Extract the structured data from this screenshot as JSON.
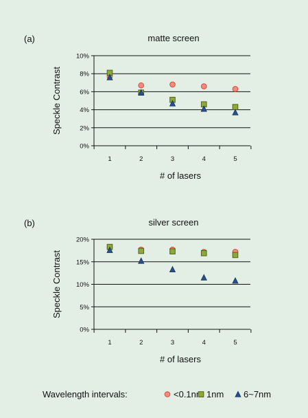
{
  "legend": {
    "label": "Wavelength intervals:",
    "entries": [
      {
        "name": "<0.1nm",
        "marker": "circle-icon"
      },
      {
        "name": "1nm",
        "marker": "square-icon"
      },
      {
        "name": "6~7nm",
        "marker": "triangle-icon"
      }
    ]
  },
  "colors": {
    "background": "#e3eee4",
    "circle_fill": "#f28c82",
    "circle_stroke": "#d9493a",
    "square_fill": "#8ea83b",
    "square_stroke": "#4f6417",
    "triangle_fill": "#28508c",
    "triangle_stroke": "#17325c"
  },
  "chart_data": [
    {
      "type": "scatter",
      "panel_label": "(a)",
      "title": "matte screen",
      "xlabel": "# of lasers",
      "ylabel": "Speckle Contrast",
      "x": [
        1,
        2,
        3,
        4,
        5
      ],
      "xticks": [
        "1",
        "2",
        "3",
        "4",
        "5"
      ],
      "ylim": [
        0,
        10
      ],
      "yticks": [
        "0%",
        "2%",
        "4%",
        "6%",
        "8%",
        "10%"
      ],
      "ytick_values": [
        0,
        2,
        4,
        6,
        8,
        10
      ],
      "grid": true,
      "series": [
        {
          "name": "<0.1nm",
          "marker": "circle",
          "values": [
            7.7,
            6.7,
            6.8,
            6.6,
            6.3
          ]
        },
        {
          "name": "1nm",
          "marker": "square",
          "values": [
            8.1,
            5.9,
            5.1,
            4.6,
            4.3
          ]
        },
        {
          "name": "6~7nm",
          "marker": "triangle",
          "values": [
            7.6,
            5.9,
            4.7,
            4.1,
            3.7
          ]
        }
      ]
    },
    {
      "type": "scatter",
      "panel_label": "(b)",
      "title": "silver screen",
      "xlabel": "# of lasers",
      "ylabel": "Speckle Contrast",
      "x": [
        1,
        2,
        3,
        4,
        5
      ],
      "xticks": [
        "1",
        "2",
        "3",
        "4",
        "5"
      ],
      "ylim": [
        0,
        20
      ],
      "yticks": [
        "0%",
        "5%",
        "10%",
        "15%",
        "20%"
      ],
      "ytick_values": [
        0,
        5,
        10,
        15,
        20
      ],
      "grid": true,
      "series": [
        {
          "name": "<0.1nm",
          "marker": "circle",
          "values": [
            18.2,
            17.7,
            17.7,
            17.2,
            17.2
          ]
        },
        {
          "name": "1nm",
          "marker": "square",
          "values": [
            18.3,
            17.4,
            17.3,
            16.9,
            16.5
          ]
        },
        {
          "name": "6~7nm",
          "marker": "triangle",
          "values": [
            17.6,
            15.2,
            13.3,
            11.5,
            10.8
          ]
        }
      ]
    }
  ]
}
